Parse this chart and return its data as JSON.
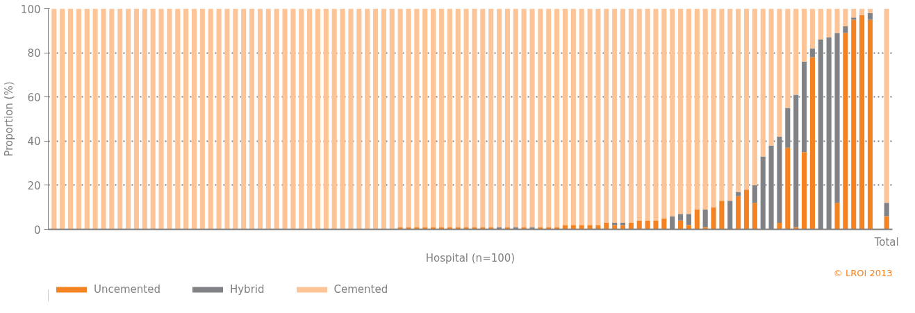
{
  "chart_data": {
    "type": "bar",
    "stacked": true,
    "xlabel": "Hospital (n=100)",
    "ylabel": "Proportion (%)",
    "categories": [
      null,
      null,
      null,
      null,
      null,
      null,
      null,
      null,
      null,
      null,
      null,
      null,
      null,
      null,
      null,
      null,
      null,
      null,
      null,
      null,
      null,
      null,
      null,
      null,
      null,
      null,
      null,
      null,
      null,
      null,
      null,
      null,
      null,
      null,
      null,
      null,
      null,
      null,
      null,
      null,
      null,
      null,
      null,
      null,
      null,
      null,
      null,
      null,
      null,
      null,
      null,
      null,
      null,
      null,
      null,
      null,
      null,
      null,
      null,
      null,
      null,
      null,
      null,
      null,
      null,
      null,
      null,
      null,
      null,
      null,
      null,
      null,
      null,
      null,
      null,
      null,
      null,
      null,
      null,
      null,
      null,
      null,
      null,
      null,
      null,
      null,
      null,
      null,
      null,
      null,
      null,
      null,
      null,
      null,
      null,
      null,
      null,
      null,
      null,
      null,
      null,
      "Total"
    ],
    "series": [
      {
        "name": "Uncemented",
        "color": "#f58220",
        "values": [
          0,
          0,
          0,
          0,
          0,
          0,
          0,
          0,
          0,
          0,
          0,
          0,
          0,
          0,
          0,
          0,
          0,
          0,
          0,
          0,
          0,
          0,
          0,
          0,
          0,
          0,
          0,
          0,
          0,
          0,
          0,
          0,
          0,
          0,
          0,
          0,
          0,
          0,
          0,
          0,
          0,
          0,
          1,
          1,
          1,
          1,
          1,
          1,
          1,
          1,
          1,
          1,
          1,
          1,
          0,
          1,
          0,
          1,
          0,
          1,
          1,
          1,
          2,
          2,
          2,
          2,
          2,
          3,
          2,
          2,
          3,
          4,
          4,
          4,
          5,
          0,
          4,
          2,
          9,
          1,
          10,
          13,
          0,
          15,
          18,
          12,
          0,
          0,
          3,
          37,
          1,
          35,
          78,
          0,
          0,
          12,
          89,
          95,
          97,
          95,
          null,
          6
        ]
      },
      {
        "name": "Hybrid",
        "color": "#808285",
        "values": [
          0,
          0,
          0,
          0,
          0,
          0,
          0,
          0,
          0,
          0,
          0,
          0,
          0,
          0,
          0,
          0,
          0,
          0,
          0,
          0,
          0,
          0,
          0,
          0,
          0,
          0,
          0,
          0,
          0,
          0,
          0,
          0,
          0,
          0,
          0,
          0,
          0,
          0,
          0,
          0,
          0,
          0,
          0,
          0,
          0,
          0,
          0,
          0,
          0,
          0,
          0,
          0,
          0,
          0,
          1,
          0,
          1,
          0,
          1,
          0,
          0,
          0,
          0,
          0,
          0,
          0,
          0,
          0,
          1,
          1,
          0,
          0,
          0,
          0,
          0,
          6,
          3,
          5,
          0,
          8,
          0,
          0,
          13,
          2,
          0,
          8,
          33,
          38,
          39,
          18,
          60,
          41,
          4,
          86,
          87,
          77,
          3,
          1,
          0,
          3,
          null,
          6
        ]
      },
      {
        "name": "Cemented",
        "color": "#fdc597",
        "values": [
          100,
          100,
          100,
          100,
          100,
          100,
          100,
          100,
          100,
          100,
          100,
          100,
          100,
          100,
          100,
          100,
          100,
          100,
          100,
          100,
          100,
          100,
          100,
          100,
          100,
          100,
          100,
          100,
          100,
          100,
          100,
          100,
          100,
          100,
          100,
          100,
          100,
          100,
          100,
          100,
          100,
          100,
          99,
          99,
          99,
          99,
          99,
          99,
          99,
          99,
          99,
          99,
          99,
          99,
          99,
          99,
          99,
          99,
          99,
          99,
          99,
          99,
          98,
          98,
          98,
          98,
          98,
          97,
          97,
          97,
          97,
          96,
          96,
          96,
          95,
          94,
          93,
          93,
          91,
          91,
          90,
          87,
          87,
          83,
          82,
          80,
          67,
          62,
          58,
          45,
          39,
          24,
          18,
          14,
          13,
          11,
          8,
          4,
          3,
          2,
          null,
          88
        ]
      }
    ],
    "ylim": [
      0,
      100
    ],
    "yticks": [
      0,
      20,
      40,
      60,
      80,
      100
    ],
    "grid": "y",
    "legend": "bottom left",
    "annotations": [
      "© LROI 2013"
    ]
  }
}
